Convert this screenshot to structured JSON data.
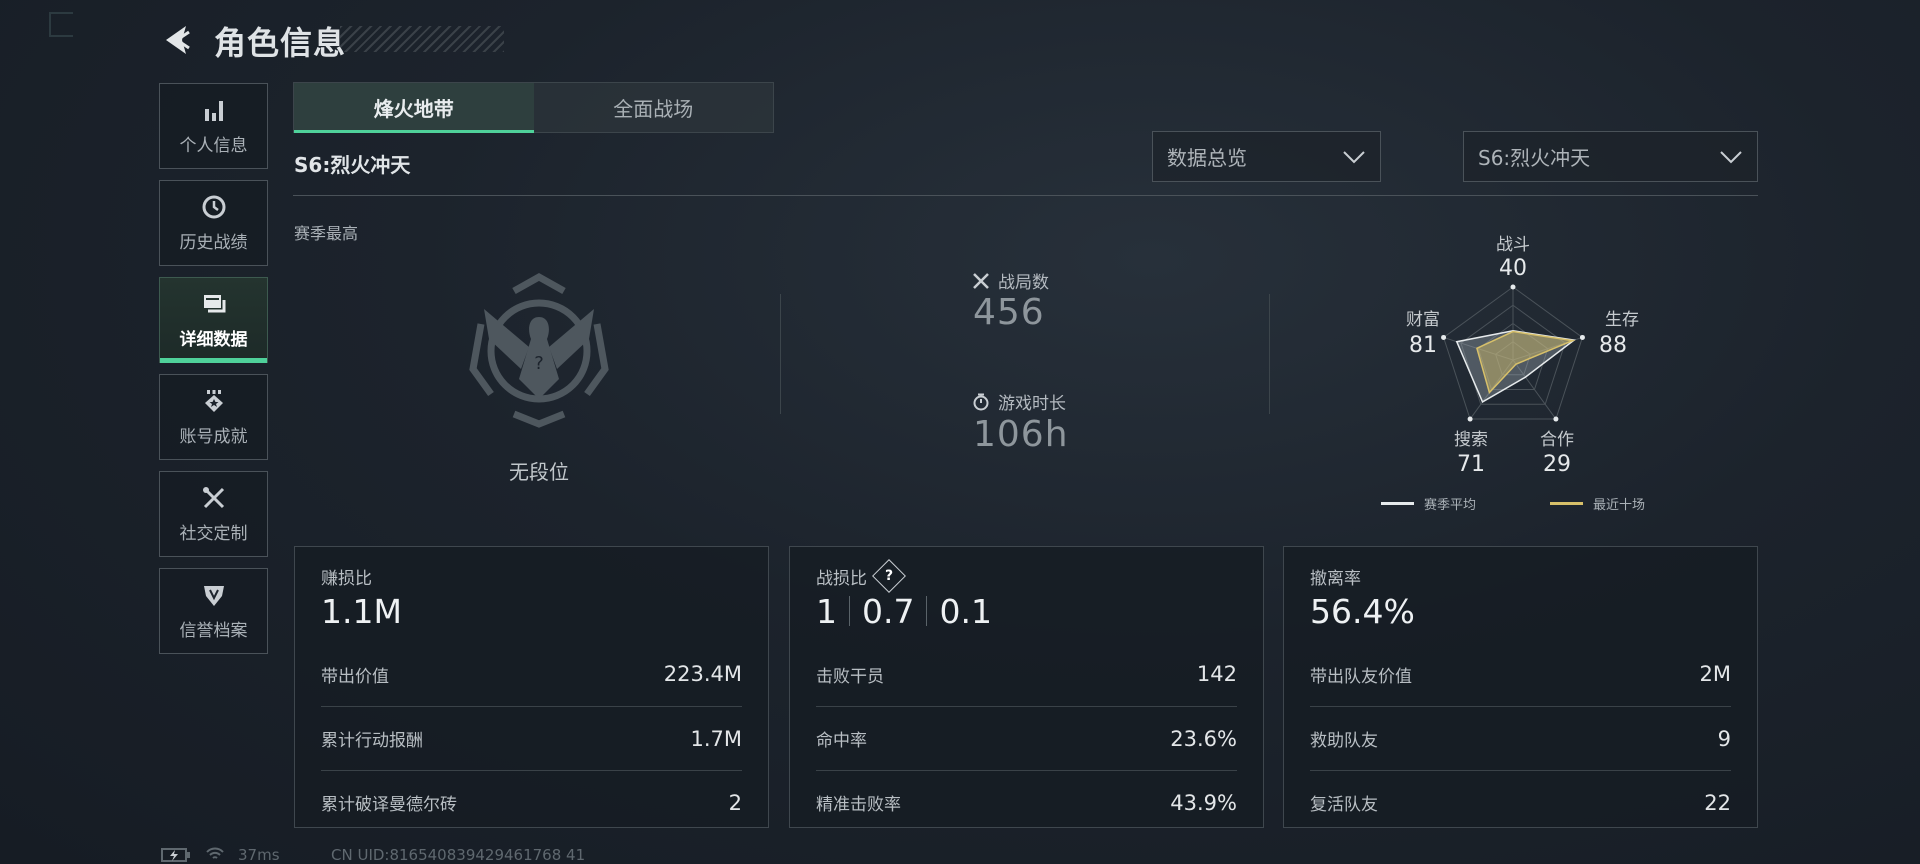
{
  "header": {
    "title": "角色信息",
    "back_icon": "back-arrow-icon"
  },
  "sidebar": {
    "items": [
      {
        "label": "个人信息",
        "icon": "bar-chart-icon",
        "active": false
      },
      {
        "label": "历史战绩",
        "icon": "clock-icon",
        "active": false
      },
      {
        "label": "详细数据",
        "icon": "folders-icon",
        "active": true
      },
      {
        "label": "账号成就",
        "icon": "medal-icon",
        "active": false
      },
      {
        "label": "社交定制",
        "icon": "tools-icon",
        "active": false
      },
      {
        "label": "信誉档案",
        "icon": "shield-icon",
        "active": false
      }
    ]
  },
  "tabs": [
    {
      "label": "烽火地带",
      "active": true
    },
    {
      "label": "全面战场",
      "active": false
    }
  ],
  "season_title": "S6:烈火冲天",
  "filters": {
    "view": "数据总览",
    "season": "S6:烈火冲天"
  },
  "rank": {
    "label": "赛季最高",
    "value": "无段位"
  },
  "summary": {
    "matches": {
      "label": "战局数",
      "value": "456"
    },
    "playtime": {
      "label": "游戏时长",
      "value": "106h"
    }
  },
  "radar": {
    "axes": [
      {
        "label": "战斗",
        "value": "40"
      },
      {
        "label": "生存",
        "value": "88"
      },
      {
        "label": "合作",
        "value": "29"
      },
      {
        "label": "搜索",
        "value": "71"
      },
      {
        "label": "财富",
        "value": "81"
      }
    ],
    "max": 100,
    "series": [
      {
        "name": "赛季平均",
        "color": "#e6eaec",
        "values": [
          40,
          88,
          29,
          71,
          81
        ]
      },
      {
        "name": "最近十场",
        "color": "#d7c06a",
        "values": [
          39,
          86,
          7,
          55,
          52
        ]
      }
    ]
  },
  "cards": [
    {
      "title": "赚损比",
      "big": "1.1M",
      "rows": [
        {
          "k": "带出价值",
          "v": "223.4M"
        },
        {
          "k": "累计行动报酬",
          "v": "1.7M"
        },
        {
          "k": "累计破译曼德尔砖",
          "v": "2"
        }
      ]
    },
    {
      "title": "战损比",
      "big_parts": [
        "1",
        "0.7",
        "0.1"
      ],
      "help_icon": "?",
      "rows": [
        {
          "k": "击败干员",
          "v": "142"
        },
        {
          "k": "命中率",
          "v": "23.6%"
        },
        {
          "k": "精准击败率",
          "v": "43.9%"
        }
      ]
    },
    {
      "title": "撤离率",
      "big": "56.4%",
      "rows": [
        {
          "k": "带出队友价值",
          "v": "2M"
        },
        {
          "k": "救助队友",
          "v": "9"
        },
        {
          "k": "复活队友",
          "v": "22"
        }
      ]
    }
  ],
  "footer": {
    "ping": "37ms",
    "uid": "CN UID:816540839429461768 41"
  }
}
